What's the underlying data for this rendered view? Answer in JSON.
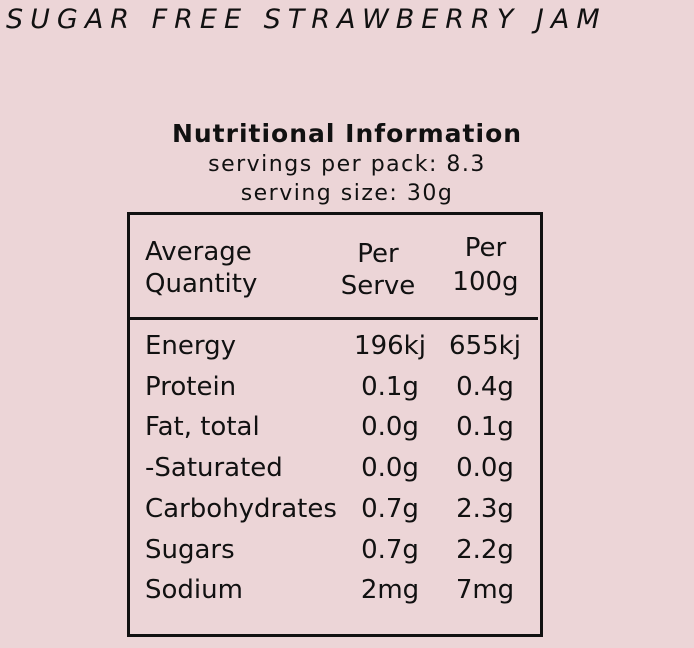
{
  "header": {
    "title": "SUGAR FREE STRAWBERRY JAM"
  },
  "nutrition": {
    "title": "Nutritional Information",
    "servings": "servings per pack: 8.3",
    "serving_size": "serving size: 30g"
  },
  "table": {
    "columns": [
      [
        "Average",
        "Quantity"
      ],
      [
        "Per",
        "Serve"
      ],
      [
        "Per",
        "100g"
      ]
    ],
    "rows": [
      [
        "Energy",
        "196kj",
        "655kj"
      ],
      [
        "Protein",
        "0.1g",
        "0.4g"
      ],
      [
        "Fat, total",
        "0.0g",
        "0.1g"
      ],
      [
        "-Saturated",
        "0.0g",
        "0.0g"
      ],
      [
        "Carbohydrates",
        "0.7g",
        "2.3g"
      ],
      [
        "Sugars",
        "0.7g",
        "2.2g"
      ],
      [
        "Sodium",
        "2mg",
        "7mg"
      ]
    ]
  }
}
